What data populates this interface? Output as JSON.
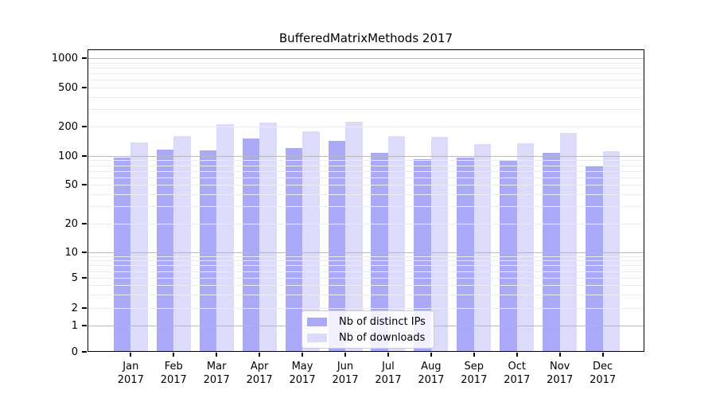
{
  "title": "BufferedMatrixMethods 2017",
  "colors": {
    "distinct_ips_bar": "#a9a9f8",
    "downloads_bar": "#dcdcfa",
    "grid_major": "#b8b8b8",
    "grid_minor": "#ececec",
    "axis": "#000000",
    "legend_border": "#cccccc",
    "text": "#000000"
  },
  "legend": {
    "items": [
      {
        "label": "Nb of distinct IPs"
      },
      {
        "label": "Nb of downloads"
      }
    ]
  },
  "chart_data": {
    "type": "bar",
    "title": "BufferedMatrixMethods 2017",
    "categories": [
      "Jan 2017",
      "Feb 2017",
      "Mar 2017",
      "Apr 2017",
      "May 2017",
      "Jun 2017",
      "Jul 2017",
      "Aug 2017",
      "Sep 2017",
      "Oct 2017",
      "Nov 2017",
      "Dec 2017"
    ],
    "series": [
      {
        "name": "Nb of distinct IPs",
        "values": [
          96,
          117,
          115,
          151,
          121,
          143,
          108,
          93,
          96,
          89,
          108,
          80
        ]
      },
      {
        "name": "Nb of downloads",
        "values": [
          137,
          160,
          212,
          218,
          180,
          222,
          160,
          157,
          133,
          135,
          173,
          112
        ]
      }
    ],
    "xlabel": "",
    "ylabel": "",
    "y_scale": "log (symlog: 0 shown at baseline)",
    "y_ticks": [
      1000,
      500,
      200,
      100,
      50,
      20,
      10,
      5,
      2,
      1,
      0
    ],
    "ylim": [
      0,
      1000
    ],
    "grid": "horizontal, major and minor log gridlines",
    "legend_position": "lower center"
  }
}
